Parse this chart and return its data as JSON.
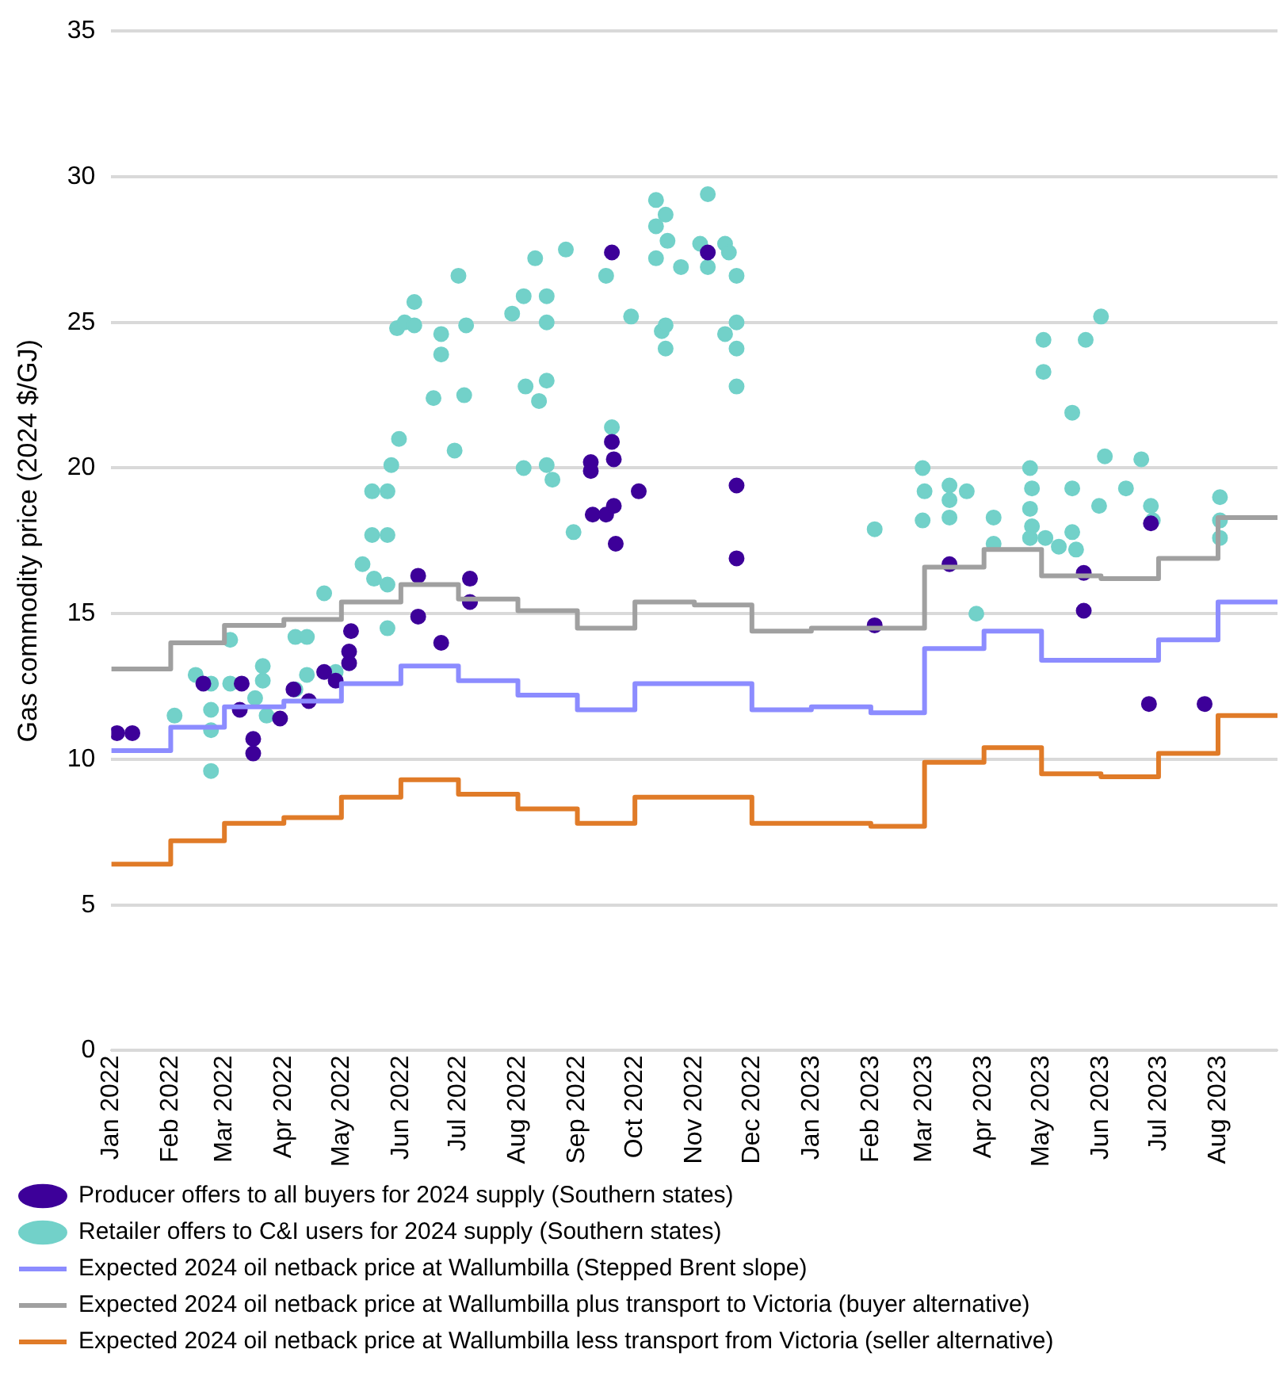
{
  "chart_data": {
    "type": "scatter",
    "ylabel": "Gas commodity price (2024 $/GJ)",
    "xlim": [
      "2022-01-01",
      "2023-09-01"
    ],
    "xticks": [
      {
        "value": "2022-01-01",
        "label": "Jan 2022"
      },
      {
        "value": "2022-02-01",
        "label": "Feb 2022"
      },
      {
        "value": "2022-03-01",
        "label": "Mar 2022"
      },
      {
        "value": "2022-04-01",
        "label": "Apr 2022"
      },
      {
        "value": "2022-05-01",
        "label": "May 2022"
      },
      {
        "value": "2022-06-01",
        "label": "Jun 2022"
      },
      {
        "value": "2022-07-01",
        "label": "Jul 2022"
      },
      {
        "value": "2022-08-01",
        "label": "Aug 2022"
      },
      {
        "value": "2022-09-01",
        "label": "Sep 2022"
      },
      {
        "value": "2022-10-01",
        "label": "Oct 2022"
      },
      {
        "value": "2022-11-01",
        "label": "Nov 2022"
      },
      {
        "value": "2022-12-01",
        "label": "Dec 2022"
      },
      {
        "value": "2023-01-01",
        "label": "Jan 2023"
      },
      {
        "value": "2023-02-01",
        "label": "Feb 2023"
      },
      {
        "value": "2023-03-01",
        "label": "Mar 2023"
      },
      {
        "value": "2023-04-01",
        "label": "Apr 2023"
      },
      {
        "value": "2023-05-01",
        "label": "May 2023"
      },
      {
        "value": "2023-06-01",
        "label": "Jun 2023"
      },
      {
        "value": "2023-07-01",
        "label": "Jul 2023"
      },
      {
        "value": "2023-08-01",
        "label": "Aug 2023"
      }
    ],
    "ylim": [
      0,
      35
    ],
    "yticks": [
      0,
      5,
      10,
      15,
      20,
      25,
      30,
      35
    ],
    "grid": "y",
    "legend": "bottom",
    "series": [
      {
        "name": "Producer offers to all buyers for 2024 supply (Southern states)",
        "marker": "circle",
        "color": "#3d0099",
        "x": [
          "2022-01-04",
          "2022-01-12",
          "2022-02-18",
          "2022-03-10",
          "2022-03-09",
          "2022-03-16",
          "2022-03-16",
          "2022-03-30",
          "2022-04-06",
          "2022-04-14",
          "2022-04-22",
          "2022-04-28",
          "2022-05-05",
          "2022-05-05",
          "2022-05-06",
          "2022-06-10",
          "2022-06-10",
          "2022-06-22",
          "2022-07-07",
          "2022-07-07",
          "2022-09-19",
          "2022-09-08",
          "2022-09-08",
          "2022-09-19",
          "2022-09-20",
          "2022-09-09",
          "2022-09-16",
          "2022-09-20",
          "2022-09-21",
          "2022-10-03",
          "2022-11-08",
          "2022-11-23",
          "2022-11-23",
          "2023-02-03",
          "2023-03-14",
          "2023-05-23",
          "2023-05-23",
          "2023-06-26",
          "2023-07-25",
          "2023-06-27"
        ],
        "values": [
          10.9,
          10.9,
          12.6,
          12.6,
          11.7,
          10.7,
          10.2,
          11.4,
          12.4,
          12.0,
          13.0,
          12.7,
          13.7,
          13.3,
          14.4,
          16.3,
          14.9,
          14.0,
          16.2,
          15.4,
          27.4,
          20.2,
          19.9,
          20.9,
          20.3,
          18.4,
          18.4,
          18.7,
          17.4,
          19.2,
          27.4,
          19.4,
          16.9,
          14.6,
          16.7,
          16.4,
          15.1,
          11.9,
          11.9,
          18.1
        ]
      },
      {
        "name": "Retailer offers to C&I users for 2024 supply (Southern states)",
        "marker": "circle",
        "color": "#72d1c9",
        "x": [
          "2022-02-03",
          "2022-02-14",
          "2022-02-22",
          "2022-02-22",
          "2022-02-22",
          "2022-02-22",
          "2022-03-04",
          "2022-03-04",
          "2022-03-17",
          "2022-03-21",
          "2022-03-21",
          "2022-03-23",
          "2022-04-07",
          "2022-04-13",
          "2022-04-07",
          "2022-04-13",
          "2022-04-22",
          "2022-04-28",
          "2022-05-12",
          "2022-05-18",
          "2022-05-17",
          "2022-05-25",
          "2022-05-17",
          "2022-05-25",
          "2022-05-25",
          "2022-05-25",
          "2022-05-27",
          "2022-05-31",
          "2022-05-30",
          "2022-06-03",
          "2022-06-08",
          "2022-06-08",
          "2022-06-18",
          "2022-06-22",
          "2022-06-22",
          "2022-07-01",
          "2022-07-05",
          "2022-07-04",
          "2022-06-29",
          "2022-07-29",
          "2022-08-04",
          "2022-08-10",
          "2022-08-16",
          "2022-08-16",
          "2022-08-26",
          "2022-08-05",
          "2022-08-12",
          "2022-08-16",
          "2022-08-04",
          "2022-08-16",
          "2022-08-19",
          "2022-08-30",
          "2022-09-16",
          "2022-09-19",
          "2022-09-29",
          "2022-10-12",
          "2022-10-12",
          "2022-10-17",
          "2022-10-18",
          "2022-10-12",
          "2022-10-25",
          "2022-10-15",
          "2022-10-17",
          "2022-10-17",
          "2022-11-08",
          "2022-11-04",
          "2022-11-08",
          "2022-11-17",
          "2022-11-19",
          "2022-11-23",
          "2022-11-17",
          "2022-11-23",
          "2022-11-23",
          "2022-11-23",
          "2023-02-03",
          "2023-02-28",
          "2023-03-01",
          "2023-02-28",
          "2023-03-14",
          "2023-03-14",
          "2023-03-14",
          "2023-03-23",
          "2023-04-06",
          "2023-04-06",
          "2023-03-28",
          "2023-04-25",
          "2023-04-26",
          "2023-04-25",
          "2023-04-26",
          "2023-04-25",
          "2023-05-03",
          "2023-05-10",
          "2023-05-17",
          "2023-05-17",
          "2023-05-19",
          "2023-05-02",
          "2023-05-02",
          "2023-05-17",
          "2023-05-24",
          "2023-06-01",
          "2023-05-31",
          "2023-06-03",
          "2023-06-14",
          "2023-06-22",
          "2023-06-27",
          "2023-06-28",
          "2023-08-02",
          "2023-08-02",
          "2023-08-02"
        ],
        "values": [
          11.5,
          12.9,
          12.6,
          11.7,
          11.0,
          9.6,
          14.1,
          12.6,
          12.1,
          13.2,
          12.7,
          11.5,
          14.2,
          14.2,
          12.4,
          12.9,
          15.7,
          13.0,
          16.7,
          16.2,
          17.7,
          17.7,
          19.2,
          19.2,
          16.0,
          14.5,
          20.1,
          21.0,
          24.8,
          25.0,
          25.7,
          24.9,
          22.4,
          24.6,
          23.9,
          26.6,
          24.9,
          22.5,
          20.6,
          25.3,
          25.9,
          27.2,
          25.9,
          25.0,
          27.5,
          22.8,
          22.3,
          23.0,
          20.0,
          20.1,
          19.6,
          17.8,
          26.6,
          21.4,
          25.2,
          29.2,
          28.3,
          28.7,
          27.8,
          27.2,
          26.9,
          24.7,
          24.1,
          24.9,
          29.4,
          27.7,
          26.9,
          27.7,
          27.4,
          26.6,
          24.6,
          25.0,
          24.1,
          22.8,
          17.9,
          20.0,
          19.2,
          18.2,
          19.4,
          18.9,
          18.3,
          19.2,
          18.3,
          17.4,
          15.0,
          20.0,
          19.3,
          18.6,
          18.0,
          17.6,
          17.6,
          17.3,
          19.3,
          17.8,
          17.2,
          24.4,
          23.3,
          21.9,
          24.4,
          25.2,
          18.7,
          20.4,
          19.3,
          20.3,
          18.7,
          18.2,
          19.0,
          18.2,
          17.6
        ]
      },
      {
        "name": "Expected 2024 oil netback price at Wallumbilla (Stepped Brent slope)",
        "type": "step",
        "line_style": "solid",
        "color": "#8c8cff",
        "x": [
          "2022-01-01",
          "2022-02-01",
          "2022-03-01",
          "2022-04-01",
          "2022-05-01",
          "2022-06-01",
          "2022-07-01",
          "2022-08-01",
          "2022-09-01",
          "2022-10-01",
          "2022-11-01",
          "2022-12-01",
          "2023-01-01",
          "2023-02-01",
          "2023-03-01",
          "2023-04-01",
          "2023-05-01",
          "2023-06-01",
          "2023-07-01",
          "2023-08-01",
          "2023-09-01"
        ],
        "values": [
          10.3,
          11.1,
          11.8,
          12.0,
          12.6,
          13.2,
          12.7,
          12.2,
          11.7,
          12.6,
          12.6,
          11.7,
          11.8,
          11.6,
          13.8,
          14.4,
          13.4,
          13.4,
          14.1,
          15.4,
          15.4
        ]
      },
      {
        "name": "Expected 2024 oil netback price at Wallumbilla plus transport to Victoria (buyer alternative)",
        "type": "step",
        "line_style": "solid",
        "color": "#a0a0a0",
        "x": [
          "2022-01-01",
          "2022-02-01",
          "2022-03-01",
          "2022-04-01",
          "2022-05-01",
          "2022-06-01",
          "2022-07-01",
          "2022-08-01",
          "2022-09-01",
          "2022-10-01",
          "2022-11-01",
          "2022-12-01",
          "2023-01-01",
          "2023-02-01",
          "2023-03-01",
          "2023-04-01",
          "2023-05-01",
          "2023-06-01",
          "2023-07-01",
          "2023-08-01",
          "2023-09-01"
        ],
        "values": [
          13.1,
          14.0,
          14.6,
          14.8,
          15.4,
          16.0,
          15.5,
          15.1,
          14.5,
          15.4,
          15.3,
          14.4,
          14.5,
          14.5,
          16.6,
          17.2,
          16.3,
          16.2,
          16.9,
          18.3,
          18.3
        ]
      },
      {
        "name": "Expected 2024 oil netback price at Wallumbilla less transport from Victoria (seller alternative)",
        "type": "step",
        "line_style": "solid",
        "color": "#e07b28",
        "x": [
          "2022-01-01",
          "2022-02-01",
          "2022-03-01",
          "2022-04-01",
          "2022-05-01",
          "2022-06-01",
          "2022-07-01",
          "2022-08-01",
          "2022-09-01",
          "2022-10-01",
          "2022-11-01",
          "2022-12-01",
          "2023-01-01",
          "2023-02-01",
          "2023-03-01",
          "2023-04-01",
          "2023-05-01",
          "2023-06-01",
          "2023-07-01",
          "2023-08-01",
          "2023-09-01"
        ],
        "values": [
          6.4,
          7.2,
          7.8,
          8.0,
          8.7,
          9.3,
          8.8,
          8.3,
          7.8,
          8.7,
          8.7,
          7.8,
          7.8,
          7.7,
          9.9,
          10.4,
          9.5,
          9.4,
          10.2,
          11.5,
          11.5
        ]
      }
    ]
  }
}
